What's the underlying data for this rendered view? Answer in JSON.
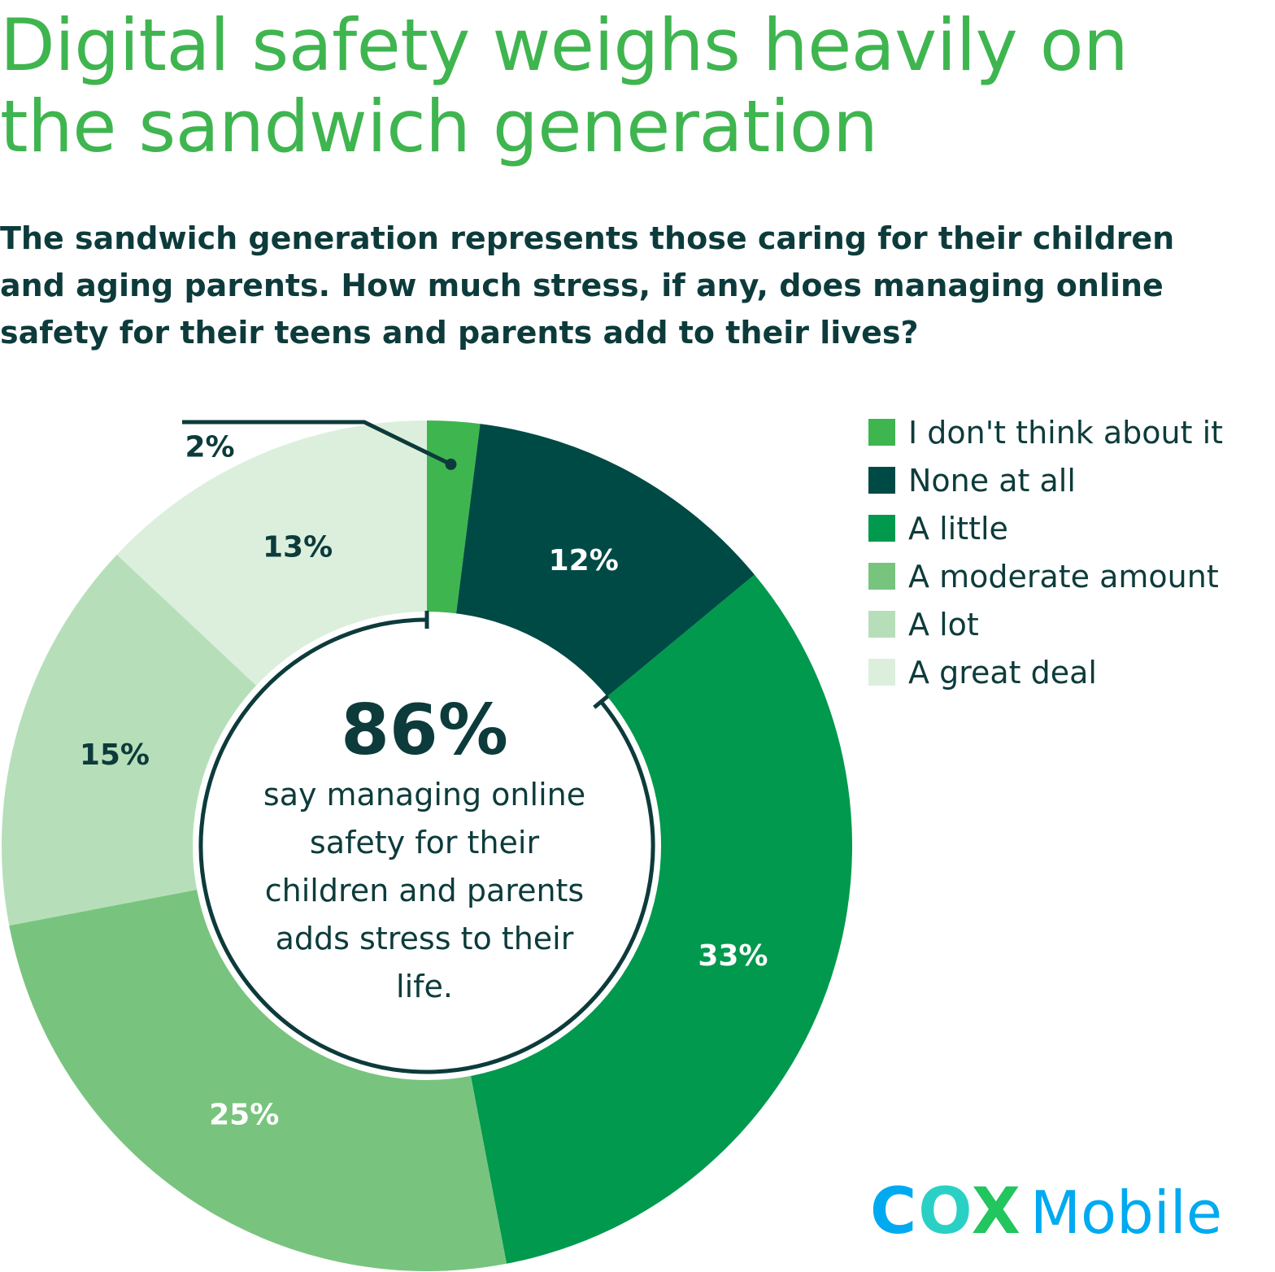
{
  "title": "Digital safety weighs heavily on the sandwich generation",
  "subtitle": "The sandwich generation represents those caring for their children and aging parents. How much stress, if any, does managing online safety for their teens and parents add to their lives?",
  "chart_data": {
    "type": "pie",
    "style": "donut",
    "categories": [
      "I don't think about it",
      "None at all",
      "A little",
      "A moderate amount",
      "A lot",
      "A great deal"
    ],
    "values": [
      2,
      12,
      33,
      25,
      15,
      13
    ],
    "data_labels": [
      "2%",
      "12%",
      "33%",
      "25%",
      "15%",
      "13%"
    ],
    "colors": [
      "#3fb54f",
      "#004a45",
      "#00994d",
      "#78c47e",
      "#b6dfb9",
      "#dcefdd"
    ],
    "label_colors": [
      "#0d3b3b",
      "#ffffff",
      "#ffffff",
      "#ffffff",
      "#0d3b3b",
      "#0d3b3b"
    ],
    "legend_position": "right",
    "center": {
      "value": "86%",
      "caption": "say managing online safety for their children and parents adds stress to their life."
    }
  },
  "logo": {
    "cox": "COX",
    "mobile": "Mobile",
    "colors": {
      "c": "#00aaf0",
      "o": "#2bd0c5",
      "x": "#22c55e",
      "mobile": "#00aaf0"
    }
  }
}
